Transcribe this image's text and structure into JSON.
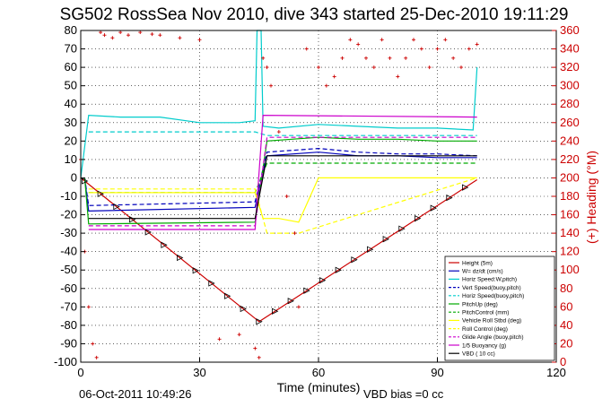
{
  "chart_data": {
    "type": "line",
    "title": "SG502 RossSea Nov 2010, dive 343 started 25-Dec-2010 19:11:29",
    "xlabel": "Time (minutes)",
    "ylabel_right": "(+) Heading (°M)",
    "xlim": [
      0,
      120
    ],
    "ylim": [
      -100,
      80
    ],
    "ylim_right": [
      0,
      360
    ],
    "x_ticks": [
      "0",
      "30",
      "60",
      "90",
      "120"
    ],
    "y_ticks": [
      "80",
      "70",
      "60",
      "50",
      "40",
      "30",
      "20",
      "10",
      "0",
      "-10",
      "-20",
      "-30",
      "-40",
      "-50",
      "-60",
      "-70",
      "-80",
      "-90",
      "-100"
    ],
    "y_ticks_right": [
      "360",
      "340",
      "320",
      "300",
      "280",
      "260",
      "240",
      "220",
      "200",
      "180",
      "160",
      "140",
      "120",
      "100",
      "80",
      "60",
      "40",
      "20",
      "0"
    ],
    "grid": true,
    "legend_position": "bottom-right",
    "footer_left": "06-Oct-2011 10:49:26",
    "footer_right": "VBD bias =0 cc",
    "series": [
      {
        "name": "Height (5m)",
        "color": "#cc0000",
        "style": "solid",
        "x": [
          0,
          45,
          100
        ],
        "y": [
          0,
          -78,
          -1
        ]
      },
      {
        "name": "W= dz/dt (cm/s)",
        "color": "#0000bb",
        "style": "solid",
        "x": [
          1,
          2,
          44,
          47,
          60,
          70,
          80,
          90,
          100
        ],
        "y": [
          0,
          -18,
          -16,
          12,
          14,
          12,
          12,
          11,
          11
        ]
      },
      {
        "name": "Horiz Speed:W,pitch)",
        "color": "#00cccc",
        "style": "solid",
        "x": [
          0,
          2,
          10,
          20,
          30,
          40,
          44,
          44.5,
          45.5,
          46,
          50,
          60,
          70,
          80,
          90,
          99,
          100
        ],
        "y": [
          0,
          34,
          33,
          33,
          30,
          30,
          31,
          80,
          80,
          28,
          27,
          29,
          28,
          27,
          27,
          26,
          60
        ]
      },
      {
        "name": "Vert Speed(buoy,pitch)",
        "color": "#0000bb",
        "style": "dashed",
        "x": [
          1,
          2,
          44,
          47,
          60,
          70,
          80,
          90,
          100
        ],
        "y": [
          0,
          -15,
          -13,
          14,
          16,
          14,
          13,
          13,
          12
        ]
      },
      {
        "name": "Horiz Speed(buoy,pitch)",
        "color": "#00cccc",
        "style": "dashed",
        "x": [
          2,
          44,
          47,
          100
        ],
        "y": [
          25,
          25,
          23,
          23
        ]
      },
      {
        "name": "PitchUp (deg)",
        "color": "#00aa00",
        "style": "solid",
        "x": [
          1,
          2,
          44,
          47,
          60,
          70,
          80,
          90,
          100
        ],
        "y": [
          0,
          -25,
          -24,
          20,
          22,
          21,
          21,
          20,
          20
        ]
      },
      {
        "name": "PitchControl (mm)",
        "color": "#00aa00",
        "style": "dashed",
        "x": [
          2,
          44,
          47,
          100
        ],
        "y": [
          -8,
          -8,
          8,
          8
        ]
      },
      {
        "name": "Vehicle Roll Stbd (deg)",
        "color": "#ffff00",
        "style": "solid",
        "x": [
          2,
          10,
          20,
          30,
          40,
          44,
          46,
          50,
          55,
          60,
          70,
          80,
          90,
          100
        ],
        "y": [
          -8,
          -8,
          -8,
          -8,
          -8,
          -8,
          -22,
          -22,
          -24,
          0,
          0,
          0,
          0,
          0
        ]
      },
      {
        "name": "Roll Control (deg)",
        "color": "#ffff00",
        "style": "dashed",
        "x": [
          2,
          44,
          47,
          55,
          100
        ],
        "y": [
          -6,
          -6,
          -30,
          -30,
          0
        ]
      },
      {
        "name": "Glide Angle (buoy,pitch)",
        "color": "#cc00cc",
        "style": "dashed",
        "x": [
          2,
          44,
          47,
          100
        ],
        "y": [
          -26,
          -26,
          22,
          22
        ]
      },
      {
        "name": "1/5 Buoyancy (g)",
        "color": "#cc00cc",
        "style": "solid",
        "x": [
          2,
          44,
          46,
          100
        ],
        "y": [
          -28,
          -28,
          34,
          33
        ]
      },
      {
        "name": "VBD ( 10 cc)",
        "color": "#000000",
        "style": "solid",
        "x": [
          2,
          44,
          47,
          100
        ],
        "y": [
          -22,
          -22,
          12,
          12
        ]
      }
    ],
    "heading_series": {
      "name": "Heading",
      "color": "#cc0000",
      "marker": "+",
      "axis": "right",
      "x": [
        0,
        1,
        2,
        3,
        4,
        5,
        6,
        8,
        10,
        12,
        15,
        18,
        20,
        25,
        30,
        35,
        40,
        44,
        45,
        46,
        47,
        48,
        50,
        52,
        54,
        55,
        57,
        60,
        62,
        64,
        66,
        68,
        70,
        72,
        74,
        76,
        78,
        80,
        82,
        84,
        86,
        88,
        90,
        92,
        94,
        96,
        98,
        100
      ],
      "y": [
        220,
        120,
        60,
        20,
        5,
        358,
        355,
        352,
        358,
        355,
        358,
        356,
        355,
        352,
        350,
        25,
        30,
        15,
        5,
        330,
        320,
        300,
        250,
        180,
        140,
        60,
        340,
        320,
        300,
        310,
        330,
        350,
        345,
        330,
        320,
        350,
        330,
        310,
        330,
        350,
        340,
        320,
        340,
        350,
        330,
        320,
        340,
        345
      ]
    }
  }
}
